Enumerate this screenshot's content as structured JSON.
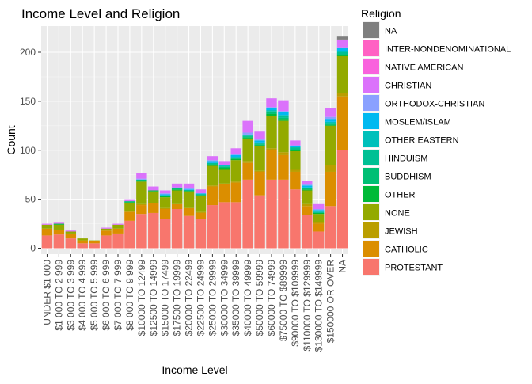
{
  "chart_data": {
    "type": "bar",
    "stacked": true,
    "title": "Income Level and Religion",
    "xlabel": "Income Level",
    "ylabel": "Count",
    "ylim": [
      0,
      225
    ],
    "yticks": [
      0,
      50,
      100,
      150,
      200
    ],
    "legend_title": "Religion",
    "legend_position": "right",
    "grid": true,
    "categories": [
      "UNDER $1 000",
      "$1 000 TO 2 999",
      "$3 000 TO 3 999",
      "$4 000 TO 4 999",
      "$5 000 TO 5 999",
      "$6 000 TO 6 999",
      "$7 000 TO 7 999",
      "$8 000 TO 9 999",
      "$10000 TO 12499",
      "$12500 TO 14999",
      "$15000 TO 17499",
      "$17500 TO 19999",
      "$20000 TO 22499",
      "$22500 TO 24999",
      "$25000 TO 29999",
      "$30000 TO 34999",
      "$35000 TO 39999",
      "$40000 TO 49999",
      "$50000 TO 59999",
      "$60000 TO 74999",
      "$75000 TO $89999",
      "$90000 TO $109999",
      "$110000 TO $129999",
      "$130000 TO $149999",
      "$150000 OR OVER",
      "NA"
    ],
    "series": [
      {
        "name": "NA",
        "color": "#7F7F7F",
        "values": [
          0,
          0,
          0,
          0,
          0,
          0,
          0,
          0,
          0,
          0,
          0,
          0,
          0,
          0,
          0,
          0,
          0,
          0,
          0,
          0,
          0,
          0,
          0,
          0,
          0,
          3
        ]
      },
      {
        "name": "INTER-NONDENOMINATIONAL",
        "color": "#FF61C3",
        "values": [
          0,
          0,
          0,
          0,
          0,
          0,
          0,
          0,
          0,
          0,
          0,
          0,
          0,
          0,
          0,
          0,
          0,
          0,
          0,
          0,
          0,
          0,
          0,
          0,
          0,
          0
        ]
      },
      {
        "name": "NATIVE AMERICAN",
        "color": "#F962DD",
        "values": [
          0,
          0,
          0,
          0,
          0,
          0,
          0,
          0,
          0,
          0,
          0,
          0,
          0,
          0,
          0,
          0,
          0,
          0,
          0,
          0,
          0,
          0,
          0,
          0,
          0,
          0
        ]
      },
      {
        "name": "CHRISTIAN",
        "color": "#DB72FB",
        "values": [
          1,
          1,
          1,
          0,
          0,
          1,
          1,
          2,
          6,
          4,
          3,
          4,
          5,
          4,
          4,
          4,
          6,
          12,
          8,
          9,
          11,
          5,
          4,
          5,
          9,
          8
        ]
      },
      {
        "name": "ORTHODOX-CHRISTIAN",
        "color": "#8AA1FF",
        "values": [
          0,
          0,
          0,
          0,
          0,
          0,
          0,
          0,
          1,
          0,
          1,
          0,
          1,
          0,
          1,
          0,
          1,
          2,
          1,
          1,
          1,
          1,
          1,
          1,
          2,
          0
        ]
      },
      {
        "name": "MOSLEM/ISLAM",
        "color": "#00B9F0",
        "values": [
          0,
          0,
          0,
          0,
          0,
          0,
          0,
          0,
          0,
          0,
          1,
          1,
          1,
          1,
          2,
          1,
          2,
          1,
          2,
          2,
          3,
          1,
          2,
          1,
          3,
          4
        ]
      },
      {
        "name": "OTHER EASTERN",
        "color": "#00C0BB",
        "values": [
          0,
          0,
          0,
          0,
          0,
          0,
          0,
          0,
          0,
          0,
          0,
          0,
          0,
          0,
          0,
          0,
          0,
          0,
          1,
          1,
          1,
          0,
          0,
          1,
          1,
          1
        ]
      },
      {
        "name": "HINDUISM",
        "color": "#00C094",
        "values": [
          0,
          0,
          0,
          0,
          0,
          0,
          0,
          0,
          0,
          0,
          0,
          0,
          0,
          0,
          1,
          1,
          1,
          1,
          1,
          1,
          2,
          2,
          1,
          1,
          2,
          2
        ]
      },
      {
        "name": "BUDDHISM",
        "color": "#00BF74",
        "values": [
          0,
          0,
          0,
          0,
          0,
          0,
          0,
          1,
          1,
          0,
          1,
          1,
          0,
          1,
          1,
          1,
          1,
          1,
          1,
          2,
          1,
          1,
          1,
          0,
          0,
          1
        ]
      },
      {
        "name": "OTHER",
        "color": "#00BA38",
        "values": [
          0,
          1,
          0,
          0,
          0,
          0,
          0,
          1,
          1,
          1,
          1,
          1,
          1,
          1,
          1,
          2,
          1,
          1,
          1,
          2,
          2,
          1,
          1,
          1,
          1,
          1
        ]
      },
      {
        "name": "NONE",
        "color": "#93AA00",
        "values": [
          4,
          5,
          2,
          2,
          1,
          2,
          4,
          8,
          23,
          12,
          11,
          14,
          17,
          16,
          20,
          14,
          22,
          23,
          25,
          33,
          32,
          19,
          14,
          8,
          40,
          38
        ]
      },
      {
        "name": "JEWISH",
        "color": "#BA9E00",
        "values": [
          0,
          0,
          0,
          0,
          0,
          0,
          0,
          1,
          1,
          0,
          1,
          0,
          0,
          1,
          1,
          0,
          1,
          2,
          1,
          2,
          3,
          2,
          2,
          2,
          7,
          3
        ]
      },
      {
        "name": "CATHOLIC",
        "color": "#DB8E00",
        "values": [
          7,
          5,
          5,
          3,
          2,
          5,
          5,
          9,
          9,
          10,
          10,
          5,
          8,
          6,
          19,
          19,
          20,
          17,
          24,
          30,
          25,
          18,
          9,
          8,
          35,
          55
        ]
      },
      {
        "name": "PROTESTANT",
        "color": "#F8766D",
        "values": [
          13,
          14,
          10,
          5,
          5,
          13,
          15,
          28,
          35,
          36,
          30,
          40,
          33,
          30,
          44,
          47,
          47,
          70,
          54,
          70,
          70,
          60,
          34,
          17,
          43,
          100
        ]
      }
    ]
  }
}
